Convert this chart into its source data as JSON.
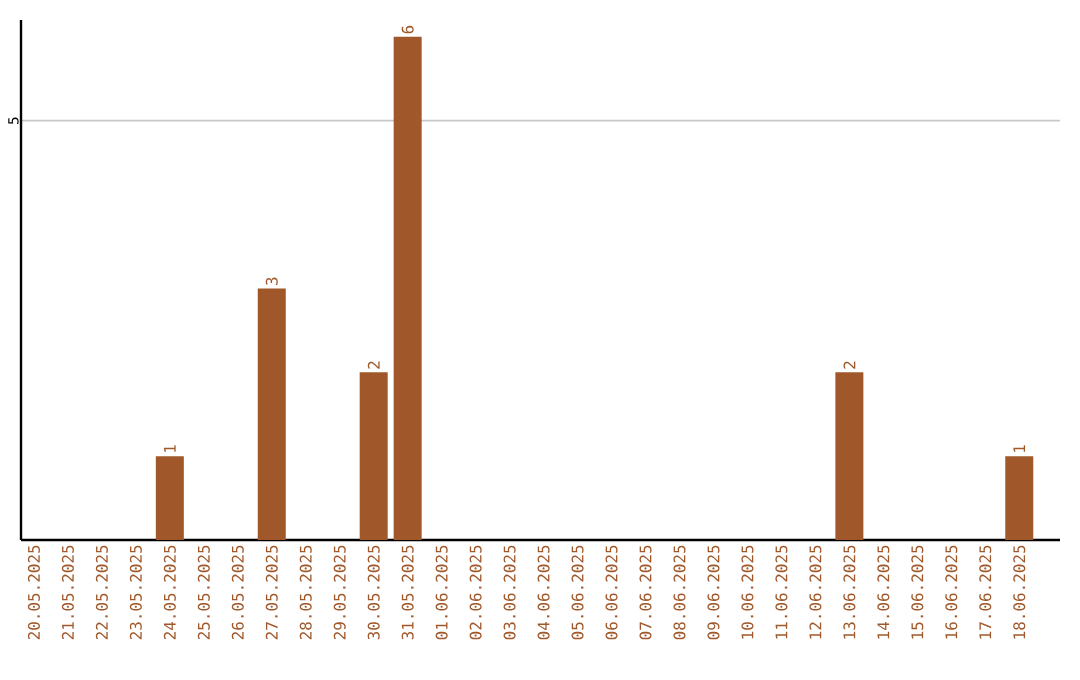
{
  "chart_data": {
    "type": "bar",
    "categories": [
      "20.05.2025",
      "21.05.2025",
      "22.05.2025",
      "23.05.2025",
      "24.05.2025",
      "25.05.2025",
      "26.05.2025",
      "27.05.2025",
      "28.05.2025",
      "29.05.2025",
      "30.05.2025",
      "31.05.2025",
      "01.06.2025",
      "02.06.2025",
      "03.06.2025",
      "04.06.2025",
      "05.06.2025",
      "06.06.2025",
      "07.06.2025",
      "08.06.2025",
      "09.06.2025",
      "10.06.2025",
      "11.06.2025",
      "12.06.2025",
      "13.06.2025",
      "14.06.2025",
      "15.06.2025",
      "16.06.2025",
      "17.06.2025",
      "18.06.2025"
    ],
    "values": [
      0,
      0,
      0,
      0,
      1,
      0,
      0,
      3,
      0,
      0,
      2,
      6,
      0,
      0,
      0,
      0,
      0,
      0,
      0,
      0,
      0,
      0,
      0,
      0,
      2,
      0,
      0,
      0,
      0,
      1
    ],
    "value_labels": [
      null,
      null,
      null,
      null,
      "1",
      null,
      null,
      "3",
      null,
      null,
      "2",
      "6",
      null,
      null,
      null,
      null,
      null,
      null,
      null,
      null,
      null,
      null,
      null,
      null,
      "2",
      null,
      null,
      null,
      null,
      "1"
    ],
    "color": "#a0582a",
    "ylim": [
      0,
      6.2
    ],
    "yticks": [
      5
    ],
    "grid": "y"
  }
}
